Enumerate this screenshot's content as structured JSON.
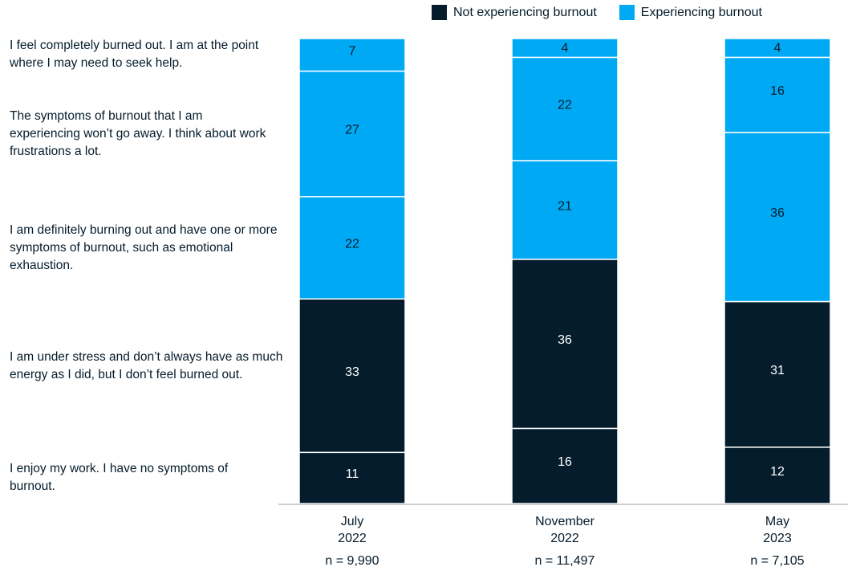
{
  "legend": {
    "not_experiencing": "Not experiencing burnout",
    "experiencing": "Experiencing burnout"
  },
  "colors": {
    "not_experiencing": "#051c2c",
    "experiencing": "#00a9f4",
    "axis": "#9aa0a6",
    "text": "#051c2c"
  },
  "row_labels": [
    "I feel completely burned out. I am at the point where I may need to seek help.",
    "The symptoms of burnout that I am experiencing won’t go away. I think about work frustrations a lot.",
    "I am definitely burning out and have one or more symptoms of burnout, such as emotional exhaustion.",
    "I am under stress and don’t always have as much energy as I did, but I don’t feel burned out.",
    "I enjoy my work. I have no symptoms of burnout."
  ],
  "chart_data": {
    "type": "bar",
    "stacked": true,
    "orientation": "vertical",
    "categories": [
      {
        "month": "July",
        "year": "2022",
        "n": "n = 9,990"
      },
      {
        "month": "November",
        "year": "2022",
        "n": "n = 11,497"
      },
      {
        "month": "May",
        "year": "2023",
        "n": "n = 7,105"
      }
    ],
    "segments": [
      {
        "label": "I enjoy my work. I have no symptoms of burnout.",
        "group": "not_experiencing",
        "values": [
          11,
          16,
          12
        ]
      },
      {
        "label": "I am under stress and don’t always have as much energy as I did, but I don’t feel burned out.",
        "group": "not_experiencing",
        "values": [
          33,
          36,
          31
        ]
      },
      {
        "label": "I am definitely burning out and have one or more symptoms of burnout, such as emotional exhaustion.",
        "group": "experiencing",
        "values": [
          22,
          21,
          36
        ]
      },
      {
        "label": "The symptoms of burnout that I am experiencing won’t go away. I think about work frustrations a lot.",
        "group": "experiencing",
        "values": [
          27,
          22,
          16
        ]
      },
      {
        "label": "I feel completely burned out. I am at the point where I may need to seek help.",
        "group": "experiencing",
        "values": [
          7,
          4,
          4
        ]
      }
    ],
    "grid": false,
    "legend_position": "top-right"
  }
}
